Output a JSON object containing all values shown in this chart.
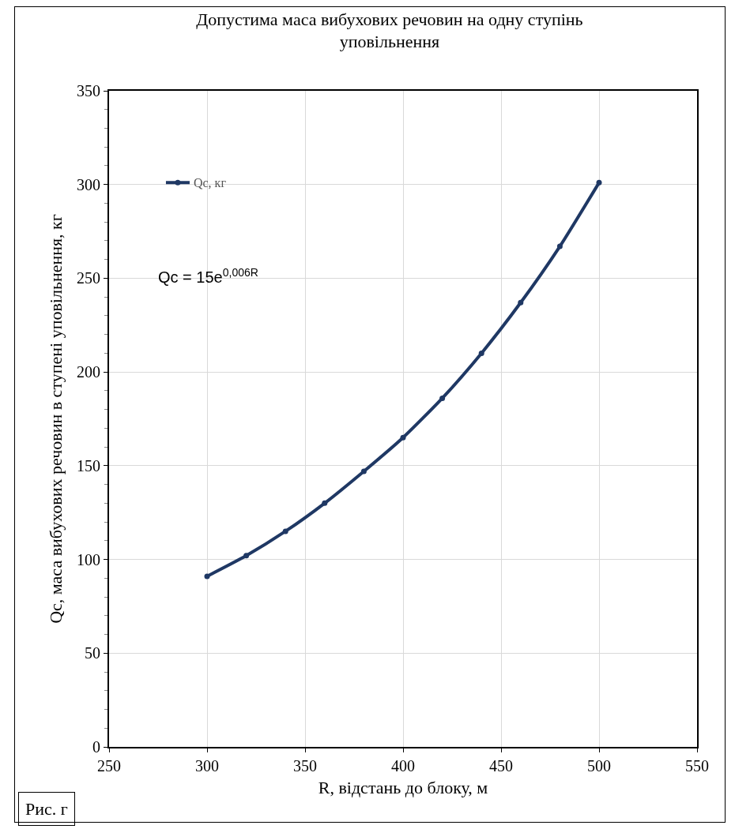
{
  "chart_data": {
    "type": "line",
    "title": "Допустима маса вибухових речовин на одну ступінь уповільнення",
    "xlabel": "R, відстань до блоку, м",
    "ylabel": "Qc, маса вибухових речовин в ступені уповільнення, кг",
    "x": [
      300,
      320,
      340,
      360,
      380,
      400,
      420,
      440,
      460,
      480,
      500
    ],
    "series": [
      {
        "name": "Qc, кг",
        "color": "#1f3864",
        "values": [
          91,
          102,
          115,
          130,
          147,
          165,
          186,
          210,
          237,
          267,
          301
        ]
      }
    ],
    "xlim": [
      250,
      550
    ],
    "xticks": [
      250,
      300,
      350,
      400,
      450,
      500,
      550
    ],
    "ylim": [
      0,
      350
    ],
    "yticks": [
      0,
      50,
      100,
      150,
      200,
      250,
      300,
      350
    ],
    "grid": true,
    "legend": "top left",
    "marker": "circle",
    "line_style": "solid",
    "annotations": [
      "Qc = 15e$^{0,006R}$",
      "Рис. г"
    ]
  }
}
